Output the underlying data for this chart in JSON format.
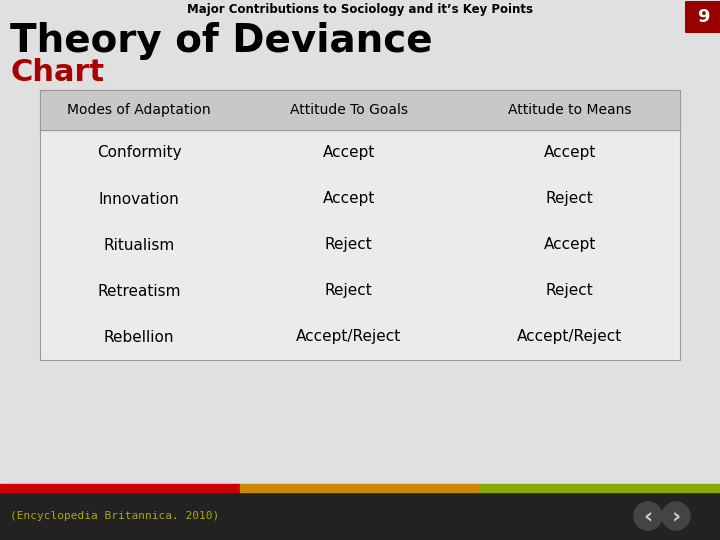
{
  "supertitle": "Major Contributions to Sociology and it’s Key Points",
  "title": "Theory of Deviance",
  "subtitle": "Chart",
  "page_number": "9",
  "bg_color": "#e0e0e0",
  "footer_bg": "#222222",
  "footer_text": "(Encyclopedia Britannica. 2010)",
  "table_bg": "#ebebeb",
  "table_header_bg": "#c8c8c8",
  "columns": [
    "Modes of Adaptation",
    "Attitude To Goals",
    "Attitude to Means"
  ],
  "rows": [
    [
      "Conformity",
      "Accept",
      "Accept"
    ],
    [
      "Innovation",
      "Accept",
      "Reject"
    ],
    [
      "Ritualism",
      "Reject",
      "Accept"
    ],
    [
      "Retreatism",
      "Reject",
      "Reject"
    ],
    [
      "Rebellion",
      "Accept/Reject",
      "Accept/Reject"
    ]
  ],
  "stripe_colors": [
    "#cc0000",
    "#cc8800",
    "#88aa00"
  ],
  "title_color": "#000000",
  "subtitle_color": "#aa0000",
  "supertitle_color": "#000000",
  "page_badge_color": "#990000",
  "page_badge_text_color": "#ffffff",
  "header_text_color": "#000000",
  "row_text_color": "#000000",
  "footer_text_color": "#aaaa00"
}
